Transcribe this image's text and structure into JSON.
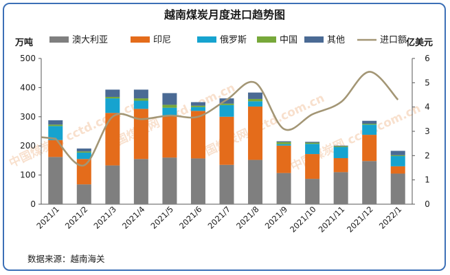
{
  "chart_data": {
    "type": "bar",
    "title": "越南煤炭月度进口趋势图",
    "y_left_label": "万吨",
    "y_right_label": "亿美元",
    "ylim_left": [
      0,
      500
    ],
    "ylim_right": [
      0,
      6
    ],
    "yticks_left": [
      "0",
      "100",
      "200",
      "300",
      "400",
      "500"
    ],
    "yticks_right": [
      "0",
      "1",
      "2",
      "3",
      "4",
      "5",
      "6"
    ],
    "categories": [
      "2021/1",
      "2021/2",
      "2021/3",
      "2021/4",
      "2021/5",
      "2021/6",
      "2021/7",
      "2021/8",
      "2021/9",
      "2021/10",
      "2021/11",
      "2021/12",
      "2022/1"
    ],
    "stacked": true,
    "series": [
      {
        "name": "澳大利亚",
        "color": "#7f7f7f",
        "values": [
          162,
          68,
          133,
          155,
          160,
          157,
          135,
          152,
          107,
          87,
          110,
          148,
          105
        ]
      },
      {
        "name": "印尼",
        "color": "#e46c1b",
        "values": [
          58,
          87,
          180,
          172,
          145,
          163,
          165,
          183,
          94,
          85,
          48,
          90,
          25
        ]
      },
      {
        "name": "俄罗斯",
        "color": "#16a3cf",
        "values": [
          48,
          22,
          50,
          28,
          26,
          13,
          40,
          18,
          5,
          35,
          38,
          35,
          35
        ]
      },
      {
        "name": "中国",
        "color": "#77a83a",
        "values": [
          5,
          4,
          5,
          8,
          10,
          5,
          5,
          8,
          7,
          4,
          3,
          3,
          3
        ]
      },
      {
        "name": "其他",
        "color": "#4a6a94",
        "values": [
          15,
          10,
          25,
          30,
          40,
          12,
          18,
          22,
          3,
          3,
          2,
          10,
          15
        ]
      }
    ],
    "line": {
      "name": "进口额",
      "color": "#a39675",
      "axis": "right",
      "values": [
        2.7,
        1.6,
        3.6,
        3.5,
        3.65,
        3.6,
        4.3,
        5.0,
        3.1,
        3.7,
        4.2,
        5.45,
        4.3
      ]
    },
    "legend_position": "top",
    "grid": false,
    "source": "数据来源：越南海关",
    "watermark": "中国煤炭网 cctd.com.cn"
  }
}
